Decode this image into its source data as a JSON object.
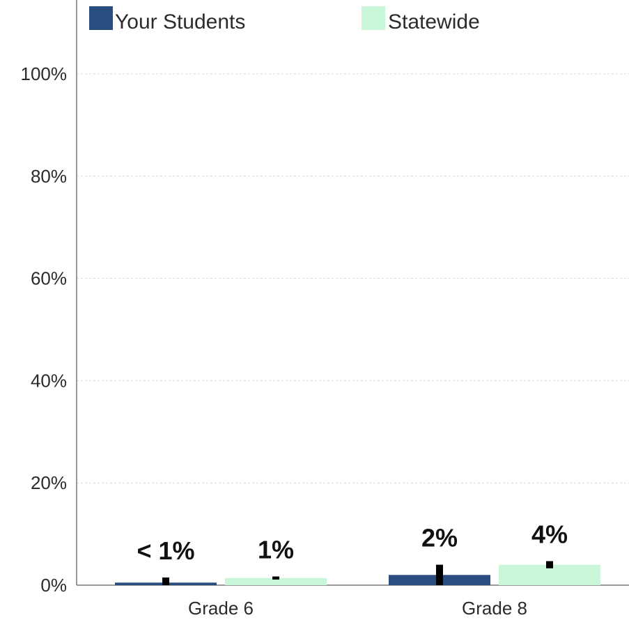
{
  "chart_data": {
    "type": "bar",
    "categories": [
      "Grade 6",
      "Grade 8"
    ],
    "series": [
      {
        "name": "Your Students",
        "values": [
          0.5,
          2
        ],
        "labels": [
          "< 1%",
          "2%"
        ],
        "error_bars": [
          [
            0,
            1.5
          ],
          [
            0,
            4
          ]
        ],
        "color": "#2a4d7f"
      },
      {
        "name": "Statewide",
        "values": [
          1.4,
          4
        ],
        "labels": [
          "1%",
          "4%"
        ],
        "error_bars": [
          [
            1.1,
            1.7
          ],
          [
            3.3,
            4.7
          ]
        ],
        "color": "#c9f5d9"
      }
    ],
    "yticks": [
      "0%",
      "20%",
      "40%",
      "60%",
      "80%",
      "100%"
    ],
    "ylim": [
      0,
      100
    ],
    "grid": true,
    "legend_position": "top"
  }
}
